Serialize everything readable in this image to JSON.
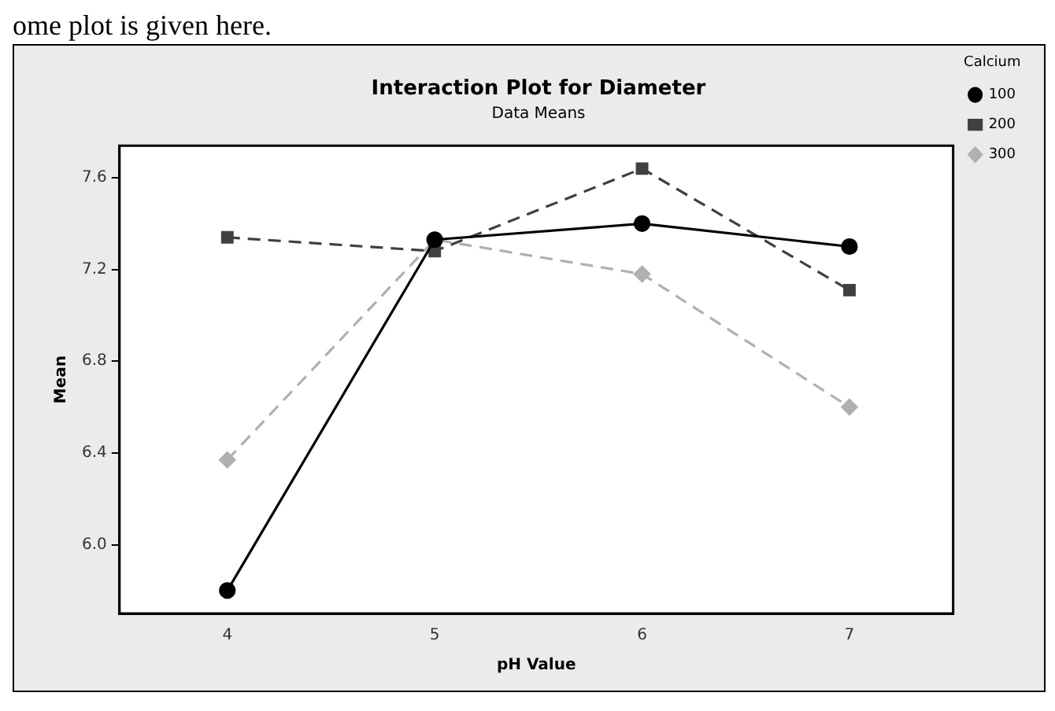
{
  "chart_data": {
    "type": "line",
    "title": "Interaction Plot for Diameter",
    "subtitle": "Data Means",
    "xlabel": "pH Value",
    "ylabel": "Mean",
    "legend_title": "Calcium",
    "annotations": [
      "ome plot is given here."
    ],
    "x": [
      4,
      5,
      6,
      7
    ],
    "xlim": [
      3.48,
      7.5
    ],
    "xticks": [
      4,
      5,
      6,
      7
    ],
    "ylim": [
      5.7,
      7.74
    ],
    "yticks": [
      {
        "value": 6.0,
        "label": "6.0"
      },
      6.4,
      6.8,
      7.2,
      7.6
    ],
    "grid": false,
    "legend": "right",
    "series": [
      {
        "name": "100",
        "color": "#000000",
        "marker": "circle",
        "line_style": "solid",
        "values": [
          5.8,
          7.33,
          7.4,
          7.3
        ]
      },
      {
        "name": "200",
        "color": "#404040",
        "marker": "square",
        "line_style": "dashed",
        "values": [
          7.34,
          7.28,
          7.64,
          7.11
        ]
      },
      {
        "name": "300",
        "color": "#b0b0b0",
        "marker": "diamond",
        "line_style": "dashed",
        "values": [
          6.37,
          7.33,
          7.18,
          6.6
        ]
      }
    ]
  }
}
